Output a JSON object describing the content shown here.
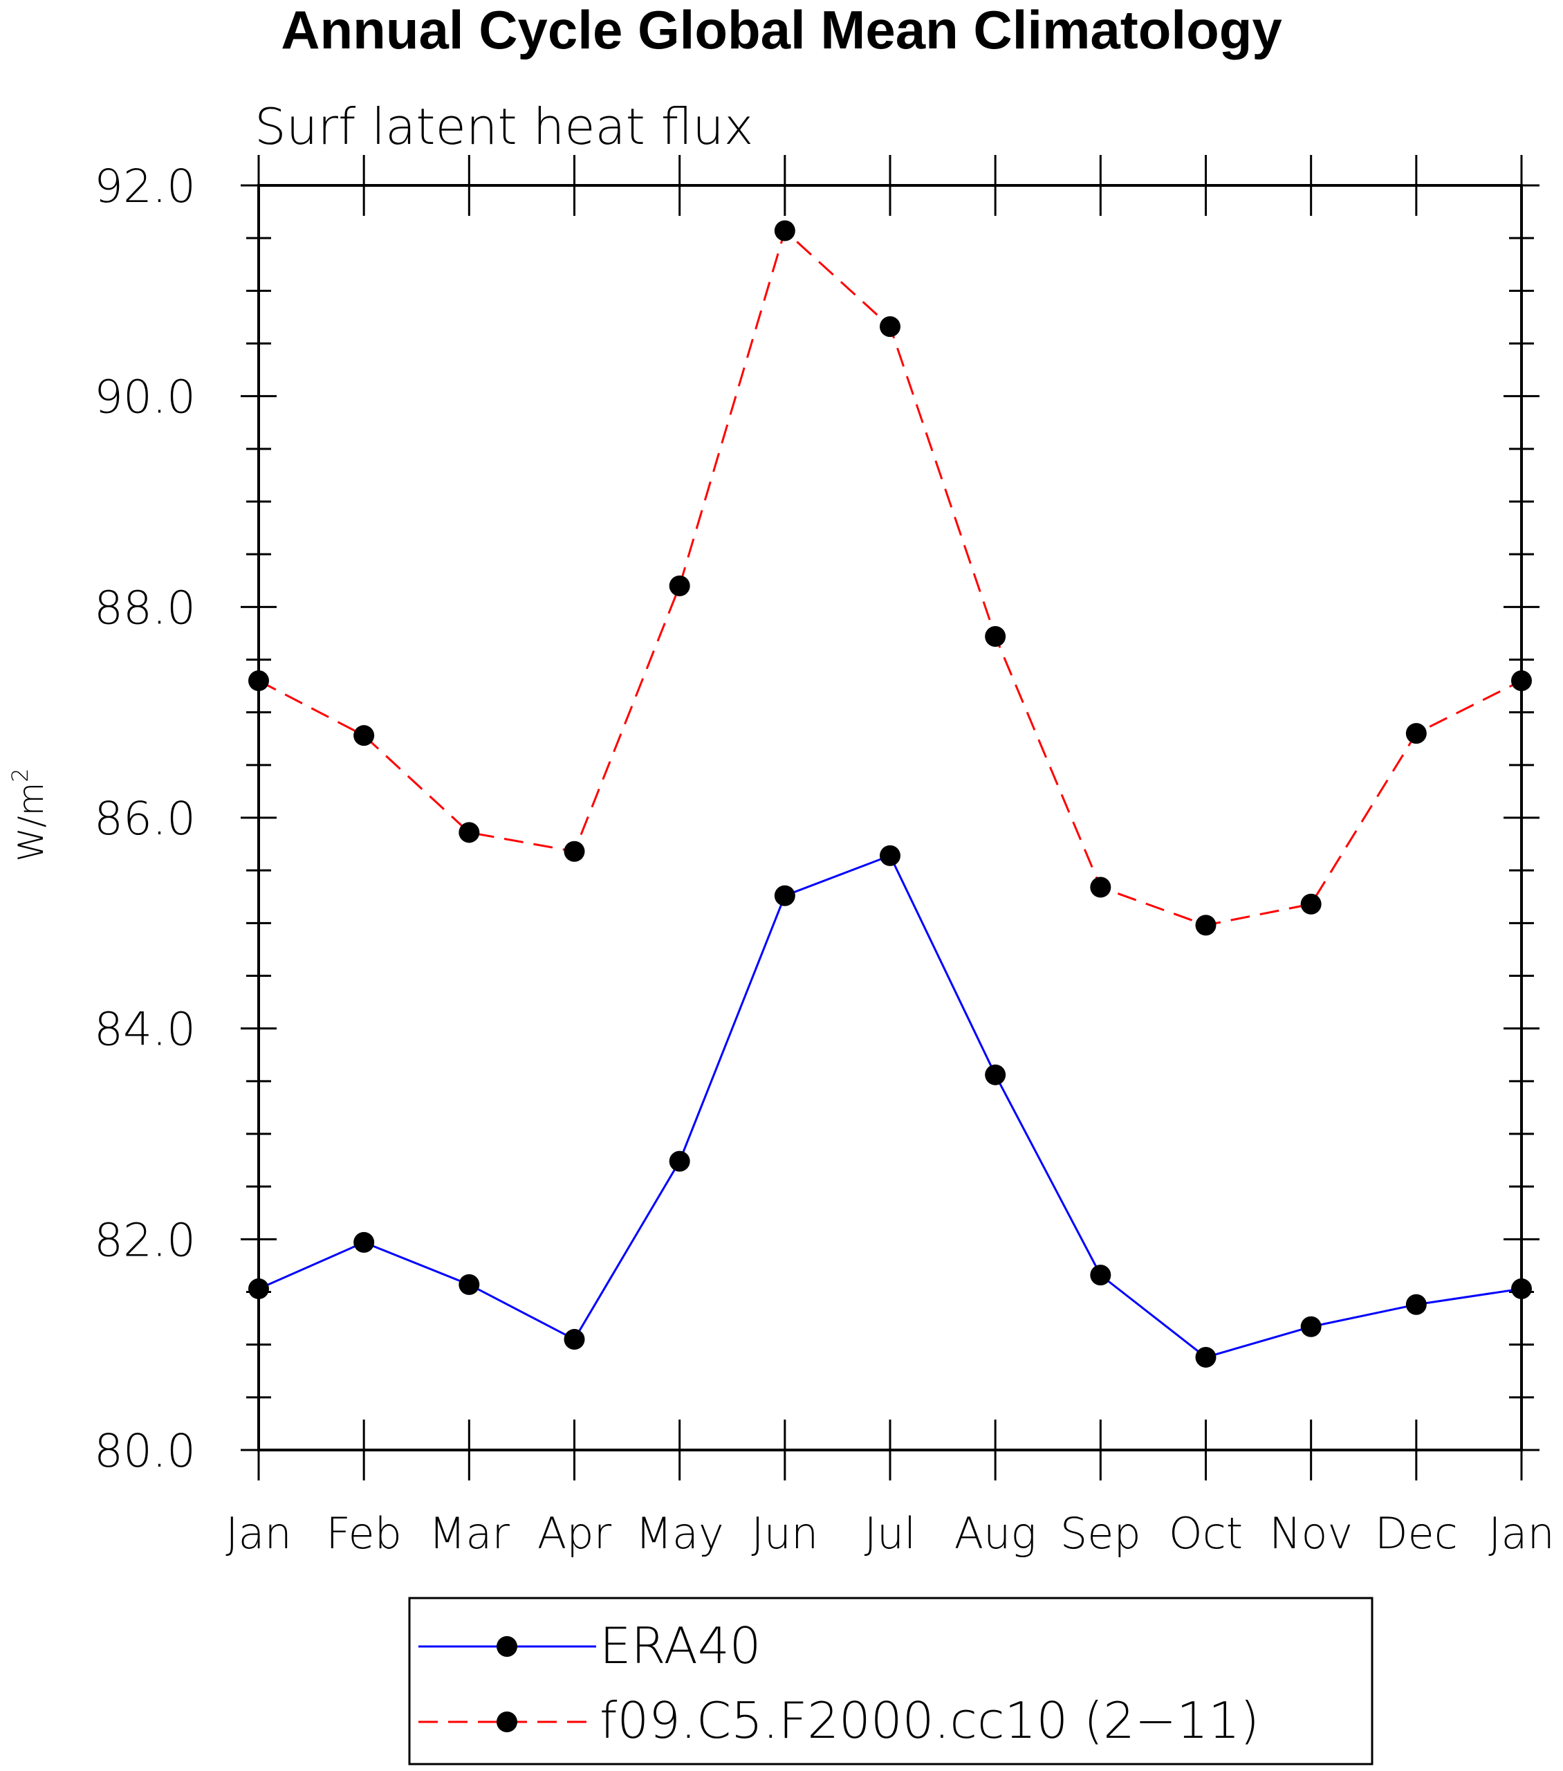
{
  "chart_data": {
    "type": "line",
    "title": "Annual Cycle Global Mean Climatology",
    "subtitle": "Surf latent heat flux",
    "xlabel": "",
    "ylabel": "W/m",
    "ylabel_sup": "2",
    "categories": [
      "Jan",
      "Feb",
      "Mar",
      "Apr",
      "May",
      "Jun",
      "Jul",
      "Aug",
      "Sep",
      "Oct",
      "Nov",
      "Dec",
      "Jan"
    ],
    "ylim": [
      80.0,
      92.0
    ],
    "y_ticks": [
      "80.0",
      "82.0",
      "84.0",
      "86.0",
      "88.0",
      "90.0",
      "92.0"
    ],
    "grid": false,
    "legend_position": "bottom",
    "series": [
      {
        "name": "ERA40",
        "color": "#0000ff",
        "dash": "solid",
        "marker": "filled-circle",
        "values": [
          81.53,
          81.97,
          81.57,
          81.05,
          82.74,
          85.26,
          85.64,
          83.56,
          81.66,
          80.88,
          81.17,
          81.38,
          81.53
        ]
      },
      {
        "name": "f09.C5.F2000.cc10 (2−11)",
        "color": "#ff0000",
        "dash": "dashed",
        "marker": "filled-circle",
        "values": [
          87.3,
          86.78,
          85.86,
          85.68,
          88.2,
          91.57,
          90.66,
          87.72,
          85.34,
          84.98,
          85.18,
          86.8,
          87.3
        ]
      }
    ]
  }
}
